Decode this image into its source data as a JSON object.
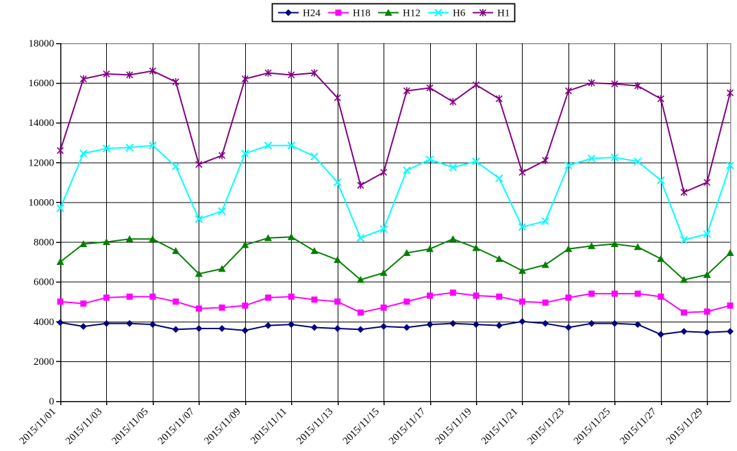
{
  "chart_data": {
    "type": "line",
    "title": "",
    "xlabel": "",
    "ylabel": "",
    "categories": [
      "2015/11/01",
      "2015/11/02",
      "2015/11/03",
      "2015/11/04",
      "2015/11/05",
      "2015/11/06",
      "2015/11/07",
      "2015/11/08",
      "2015/11/09",
      "2015/11/10",
      "2015/11/11",
      "2015/11/12",
      "2015/11/13",
      "2015/11/14",
      "2015/11/15",
      "2015/11/16",
      "2015/11/17",
      "2015/11/18",
      "2015/11/19",
      "2015/11/20",
      "2015/11/21",
      "2015/11/22",
      "2015/11/23",
      "2015/11/24",
      "2015/11/25",
      "2015/11/26",
      "2015/11/27",
      "2015/11/28",
      "2015/11/29",
      "2015/11/30"
    ],
    "x_tick_labels": [
      "2015/11/01",
      "2015/11/03",
      "2015/11/05",
      "2015/11/07",
      "2015/11/09",
      "2015/11/11",
      "2015/11/13",
      "2015/11/15",
      "2015/11/17",
      "2015/11/19",
      "2015/11/21",
      "2015/11/23",
      "2015/11/25",
      "2015/11/27",
      "2015/11/29"
    ],
    "x_tick_interval": 2,
    "y_tick_labels": [
      "0",
      "2000",
      "4000",
      "6000",
      "8000",
      "10000",
      "12000",
      "14000",
      "16000",
      "18000"
    ],
    "ylim": [
      0,
      18000
    ],
    "y_tick_step": 2000,
    "grid": true,
    "legend_position": "top-center",
    "background": "#FFFFFF",
    "axis_color": "#000000",
    "gridline_color": "#000000",
    "plot_border_color": "#909090",
    "series": [
      {
        "name": "H24",
        "color": "#000080",
        "marker": "diamond",
        "values": [
          3950,
          3750,
          3900,
          3900,
          3850,
          3600,
          3650,
          3650,
          3550,
          3800,
          3850,
          3700,
          3650,
          3600,
          3750,
          3700,
          3850,
          3900,
          3850,
          3800,
          4000,
          3900,
          3700,
          3900,
          3900,
          3850,
          3350,
          3500,
          3450,
          3500
        ]
      },
      {
        "name": "H18",
        "color": "#FF00FF",
        "marker": "square",
        "values": [
          5000,
          4900,
          5200,
          5250,
          5250,
          5000,
          4650,
          4700,
          4800,
          5200,
          5250,
          5100,
          5000,
          4450,
          4700,
          5000,
          5300,
          5450,
          5300,
          5250,
          5000,
          4950,
          5200,
          5400,
          5400,
          5400,
          5250,
          4450,
          4500,
          4800
        ]
      },
      {
        "name": "H12",
        "color": "#008000",
        "marker": "triangle",
        "values": [
          7000,
          7900,
          8000,
          8150,
          8150,
          7550,
          6400,
          6650,
          7850,
          8200,
          8250,
          7550,
          7100,
          6100,
          6450,
          7450,
          7650,
          8150,
          7700,
          7150,
          6550,
          6850,
          7650,
          7800,
          7900,
          7750,
          7150,
          6100,
          6350,
          7450
        ]
      },
      {
        "name": "H6",
        "color": "#00FFFF",
        "marker": "x",
        "values": [
          9700,
          12450,
          12700,
          12750,
          12850,
          11800,
          9150,
          9550,
          12450,
          12850,
          12850,
          12300,
          11000,
          8200,
          8650,
          11600,
          12150,
          11750,
          12050,
          11200,
          8750,
          9050,
          11850,
          12200,
          12250,
          12050,
          11100,
          8100,
          8400,
          11850
        ]
      },
      {
        "name": "H1",
        "color": "#800080",
        "marker": "star",
        "values": [
          12600,
          16200,
          16450,
          16400,
          16600,
          16050,
          11900,
          12350,
          16200,
          16500,
          16400,
          16500,
          15250,
          10850,
          11500,
          15600,
          15750,
          15050,
          15900,
          15200,
          11500,
          12100,
          15600,
          16000,
          15950,
          15850,
          15200,
          10500,
          11000,
          15500
        ]
      }
    ]
  }
}
